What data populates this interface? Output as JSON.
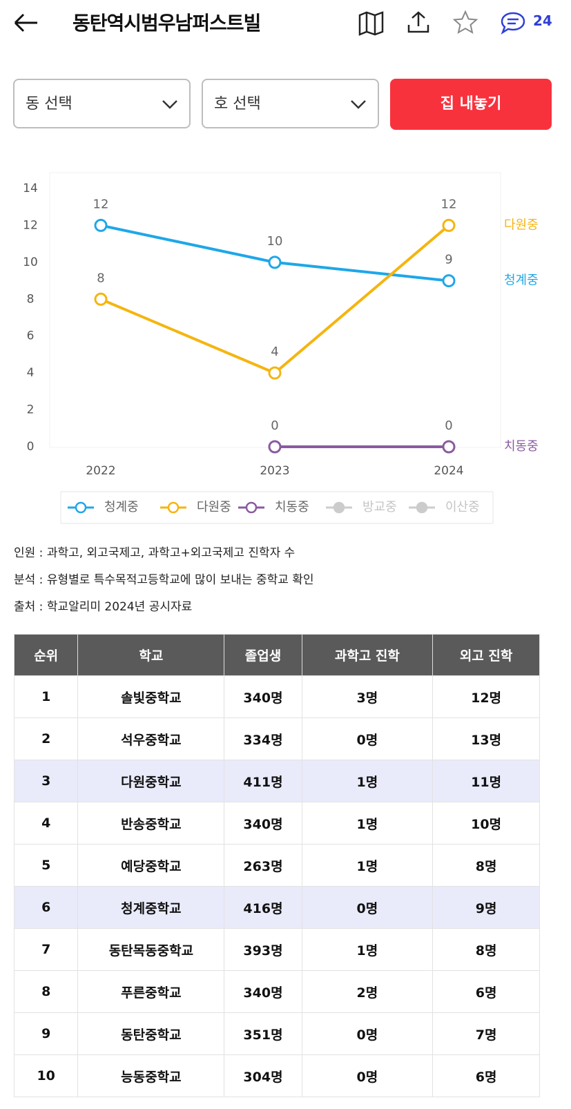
{
  "header": {
    "title": "동탄역시범우남퍼스트빌",
    "comment_count": "24"
  },
  "controls": {
    "dong": "동 선택",
    "ho": "호 선택",
    "button": "집 내놓기"
  },
  "chart_data": {
    "type": "line",
    "categories": [
      "2022",
      "2023",
      "2024"
    ],
    "series": [
      {
        "name": "청계중",
        "color": "#1ea7e8",
        "values": [
          12,
          10,
          9
        ]
      },
      {
        "name": "다원중",
        "color": "#f5b50f",
        "values": [
          8,
          4,
          12
        ]
      },
      {
        "name": "치동중",
        "color": "#8a5aa0",
        "values": [
          null,
          0,
          0
        ]
      },
      {
        "name": "방교중",
        "color": "#cccccc",
        "values": [
          null,
          null,
          null
        ],
        "hidden": true
      },
      {
        "name": "이산중",
        "color": "#cccccc",
        "values": [
          null,
          null,
          null
        ],
        "hidden": true
      }
    ],
    "ylim": [
      0,
      14
    ],
    "yticks": [
      0,
      2,
      4,
      6,
      8,
      10,
      12,
      14
    ],
    "data_labels": true,
    "legend": "bottom"
  },
  "notes": [
    "인원 : 과학고, 외고국제고, 과학고+외고국제고 진학자 수",
    "분석 : 유형별로 특수목적고등학교에 많이 보내는 중학교 확인",
    "출처 : 학교알리미 2024년 공시자료"
  ],
  "table": {
    "columns": [
      "순위",
      "학교",
      "졸업생",
      "과학고 진학",
      "외고 진학"
    ],
    "rows": [
      [
        "1",
        "솔빛중학교",
        "340명",
        "3명",
        "12명"
      ],
      [
        "2",
        "석우중학교",
        "334명",
        "0명",
        "13명"
      ],
      [
        "3",
        "다원중학교",
        "411명",
        "1명",
        "11명"
      ],
      [
        "4",
        "반송중학교",
        "340명",
        "1명",
        "10명"
      ],
      [
        "5",
        "예당중학교",
        "263명",
        "1명",
        "8명"
      ],
      [
        "6",
        "청계중학교",
        "416명",
        "0명",
        "9명"
      ],
      [
        "7",
        "동탄목동중학교",
        "393명",
        "1명",
        "8명"
      ],
      [
        "8",
        "푸른중학교",
        "340명",
        "2명",
        "6명"
      ],
      [
        "9",
        "동탄중학교",
        "351명",
        "0명",
        "7명"
      ],
      [
        "10",
        "능동중학교",
        "304명",
        "0명",
        "6명"
      ]
    ],
    "highlight_rows": [
      2,
      5
    ]
  }
}
